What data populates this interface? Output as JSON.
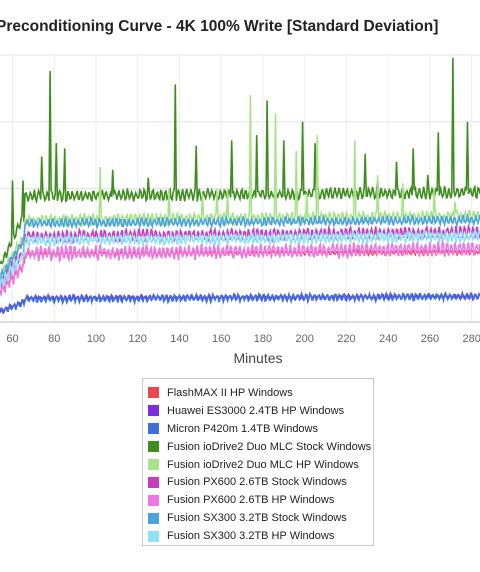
{
  "chart_data": {
    "type": "line",
    "title": "Preconditioning Curve - 4K 100% Write [Standard Deviation]",
    "xlabel": "Minutes",
    "ylabel": "",
    "xlim": [
      54,
      284
    ],
    "ylim": [
      0,
      1
    ],
    "x_ticks": [
      60,
      80,
      100,
      120,
      140,
      160,
      180,
      200,
      220,
      240,
      260,
      280
    ],
    "x_tick_labels": [
      "60",
      "80",
      "100",
      "120",
      "140",
      "160",
      "180",
      "200",
      "220",
      "240",
      "260",
      "280"
    ],
    "grid": true,
    "legend_position": "bottom",
    "series": [
      {
        "name": "FlashMAX II HP Windows",
        "color": "#e8474c",
        "base": 0.255,
        "noise": 0.003,
        "spikes": []
      },
      {
        "name": "Huawei ES3000 2.4TB HP Windows",
        "color": "#7b2ee0",
        "base": 0.09,
        "noise": 0.003,
        "spikes": []
      },
      {
        "name": "Micron P420m 1.4TB Windows",
        "color": "#3f6fd8",
        "base": 0.085,
        "noise": 0.005,
        "spikes": []
      },
      {
        "name": "Fusion ioDrive2 Duo MLC Stock Windows",
        "color": "#3f8c1f",
        "base": 0.47,
        "noise": 0.008,
        "spikes": [
          [
            60,
            0.53
          ],
          [
            65,
            0.53
          ],
          [
            74,
            0.62
          ],
          [
            78,
            0.94
          ],
          [
            81,
            0.67
          ],
          [
            85,
            0.65
          ],
          [
            108,
            0.57
          ],
          [
            115,
            0.5
          ],
          [
            125,
            0.54
          ],
          [
            138,
            0.89
          ],
          [
            148,
            0.66
          ],
          [
            165,
            0.68
          ],
          [
            177,
            0.7
          ],
          [
            182,
            0.83
          ],
          [
            190,
            0.68
          ],
          [
            199,
            0.75
          ],
          [
            205,
            0.67
          ],
          [
            229,
            0.63
          ],
          [
            235,
            0.53
          ],
          [
            244,
            0.6
          ],
          [
            252,
            0.65
          ],
          [
            259,
            0.55
          ],
          [
            264,
            0.71
          ],
          [
            271,
            0.99
          ],
          [
            278,
            0.75
          ]
        ]
      },
      {
        "name": "Fusion ioDrive2 Duo MLC HP Windows",
        "color": "#a8e38a",
        "base": 0.38,
        "noise": 0.008,
        "spikes": [
          [
            102,
            0.58
          ],
          [
            135,
            0.5
          ],
          [
            151,
            0.48
          ],
          [
            158,
            0.5
          ],
          [
            163,
            0.5
          ],
          [
            174,
            0.85
          ],
          [
            186,
            0.78
          ],
          [
            196,
            0.64
          ],
          [
            201,
            0.48
          ],
          [
            206,
            0.7
          ],
          [
            224,
            0.68
          ],
          [
            235,
            0.55
          ],
          [
            247,
            0.52
          ],
          [
            262,
            0.5
          ],
          [
            272,
            0.45
          ]
        ]
      },
      {
        "name": "Fusion PX600 2.6TB Stock Windows",
        "color": "#c83cc0",
        "base": 0.32,
        "noise": 0.008,
        "spikes": []
      },
      {
        "name": "Fusion PX600 2.6TB HP Windows",
        "color": "#ee78e2",
        "base": 0.255,
        "noise": 0.01,
        "spikes": []
      },
      {
        "name": "Fusion SX300 3.2TB Stock Windows",
        "color": "#4aa3de",
        "base": 0.37,
        "noise": 0.006,
        "spikes": []
      },
      {
        "name": "Fusion SX300 3.2TB HP Windows",
        "color": "#8ee2f5",
        "base": 0.305,
        "noise": 0.008,
        "spikes": []
      }
    ]
  }
}
